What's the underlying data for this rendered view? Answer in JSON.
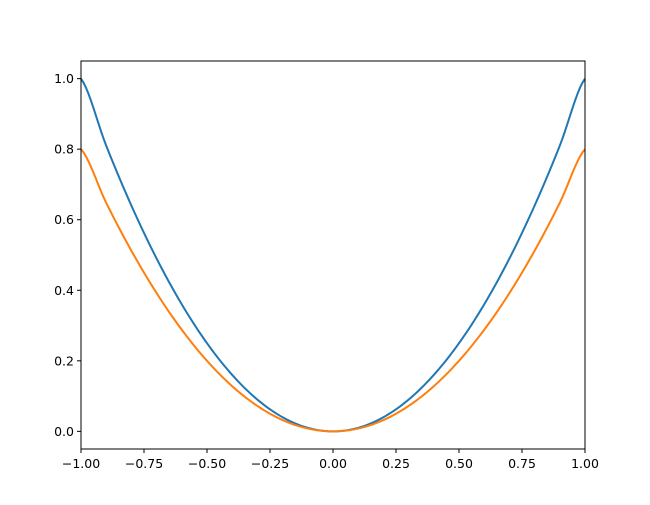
{
  "chart_data": {
    "type": "line",
    "xlim": [
      -1.0,
      1.0
    ],
    "ylim": [
      -0.05,
      1.05
    ],
    "grid": false,
    "x_ticks": [
      -1.0,
      -0.75,
      -0.5,
      -0.25,
      0.0,
      0.25,
      0.5,
      0.75,
      1.0
    ],
    "x_tick_labels": [
      "−1.00",
      "−0.75",
      "−0.50",
      "−0.25",
      "0.00",
      "0.25",
      "0.50",
      "0.75",
      "1.00"
    ],
    "y_ticks": [
      0.0,
      0.2,
      0.4,
      0.6,
      0.8,
      1.0
    ],
    "y_tick_labels": [
      "0.0",
      "0.2",
      "0.4",
      "0.6",
      "0.8",
      "1.0"
    ],
    "x": [
      -1.0,
      -0.9,
      -0.8,
      -0.7,
      -0.6,
      -0.5,
      -0.4,
      -0.3,
      -0.2,
      -0.1,
      0.0,
      0.1,
      0.2,
      0.3,
      0.4,
      0.5,
      0.6,
      0.7,
      0.8,
      0.9,
      1.0
    ],
    "series": [
      {
        "color": "#1f77b4",
        "values": [
          1.0,
          0.81,
          0.64,
          0.49,
          0.36,
          0.25,
          0.16,
          0.09,
          0.04,
          0.01,
          0.0,
          0.01,
          0.04,
          0.09,
          0.16,
          0.25,
          0.36,
          0.49,
          0.64,
          0.81,
          1.0
        ]
      },
      {
        "color": "#ff7f0e",
        "values": [
          0.8,
          0.648,
          0.512,
          0.392,
          0.288,
          0.2,
          0.128,
          0.072,
          0.032,
          0.008,
          0.0,
          0.008,
          0.032,
          0.072,
          0.128,
          0.2,
          0.288,
          0.392,
          0.512,
          0.648,
          0.8
        ]
      }
    ]
  }
}
